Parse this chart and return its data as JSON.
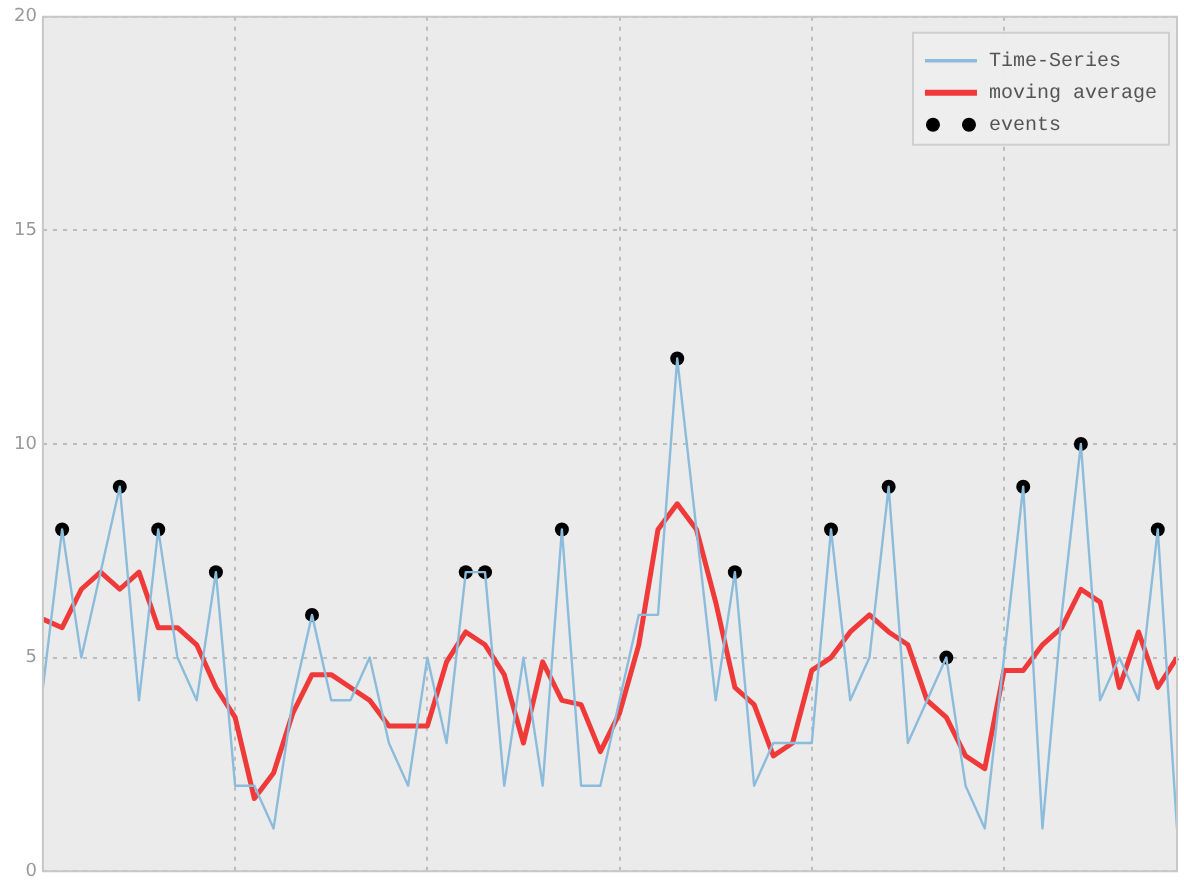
{
  "chart_data": {
    "type": "line",
    "categories": [
      null,
      null,
      null,
      null,
      null,
      null,
      null,
      null,
      null,
      null,
      null,
      null,
      null,
      null,
      null,
      null,
      null,
      null,
      null,
      null,
      null,
      null,
      null,
      null,
      null,
      null,
      null,
      null,
      null,
      null,
      null,
      null,
      null,
      null,
      null,
      null,
      null,
      null,
      null,
      null,
      null,
      null,
      null,
      null,
      null,
      null,
      null,
      null,
      null,
      null,
      null,
      null,
      null,
      null,
      null,
      null,
      null,
      null,
      null,
      null
    ],
    "series": [
      {
        "name": "Time-Series",
        "type": "line",
        "color": "#8cbcdc",
        "values": [
          4.3,
          8,
          5,
          7,
          9,
          4,
          8,
          5,
          4,
          7,
          2,
          2,
          1,
          4,
          6,
          4,
          4,
          5,
          3,
          2,
          5,
          3,
          7,
          7,
          2,
          5,
          2,
          8,
          2,
          2,
          4,
          6,
          6,
          12,
          8,
          4,
          7,
          2,
          3,
          3,
          3,
          8,
          4,
          5,
          9,
          3,
          4,
          5,
          2,
          1,
          5,
          9,
          1,
          6,
          10,
          4,
          5,
          4,
          8,
          1
        ]
      },
      {
        "name": "moving average",
        "type": "line",
        "color": "#f03a3a",
        "values": [
          5.9,
          5.7,
          6.6,
          7.0,
          6.6,
          7.0,
          5.7,
          5.7,
          5.3,
          4.3,
          3.6,
          1.7,
          2.3,
          3.7,
          4.6,
          4.6,
          4.3,
          4.0,
          3.4,
          3.4,
          3.4,
          4.9,
          5.6,
          5.3,
          4.6,
          3.0,
          4.9,
          4.0,
          3.9,
          2.8,
          3.7,
          5.3,
          8.0,
          8.6,
          8.0,
          6.3,
          4.3,
          3.9,
          2.7,
          3.0,
          4.7,
          5.0,
          5.6,
          6.0,
          5.6,
          5.3,
          4.0,
          3.6,
          2.7,
          2.4,
          4.7,
          4.7,
          5.3,
          5.7,
          6.6,
          6.3,
          4.3,
          5.6,
          4.3,
          5.0
        ]
      },
      {
        "name": "events",
        "type": "scatter",
        "color": "#000000",
        "marker": "circle",
        "values": [
          null,
          8,
          null,
          null,
          9,
          null,
          8,
          null,
          null,
          7,
          null,
          null,
          null,
          null,
          6,
          null,
          null,
          null,
          null,
          null,
          null,
          null,
          7,
          7,
          null,
          null,
          null,
          8,
          null,
          null,
          null,
          null,
          null,
          12,
          null,
          null,
          7,
          null,
          null,
          null,
          null,
          8,
          null,
          null,
          9,
          null,
          null,
          5,
          null,
          null,
          null,
          9,
          null,
          null,
          10,
          null,
          null,
          null,
          8,
          null
        ]
      }
    ],
    "ylim": [
      0,
      20
    ],
    "yticks": [
      0,
      5,
      10,
      15,
      20
    ],
    "grid": true,
    "legend": "top right",
    "tick_labels": "y"
  }
}
